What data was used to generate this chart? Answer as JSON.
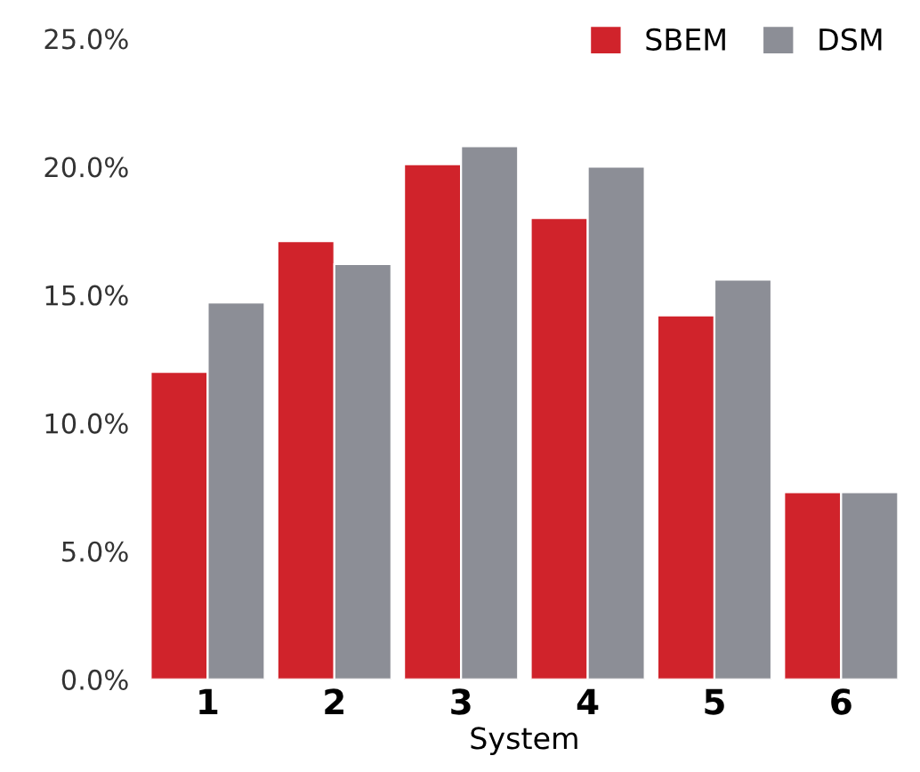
{
  "chart_data": {
    "type": "bar",
    "xlabel": "System",
    "categories": [
      "1",
      "2",
      "3",
      "4",
      "5",
      "6"
    ],
    "series": [
      {
        "name": "SBEM",
        "color": "#d0232b",
        "values": [
          12.0,
          17.1,
          20.1,
          18.0,
          14.2,
          7.3
        ]
      },
      {
        "name": "DSM",
        "color": "#8c8e96",
        "values": [
          14.7,
          16.2,
          20.8,
          20.0,
          15.6,
          7.3
        ]
      }
    ],
    "ylim": [
      0,
      25
    ],
    "yticks": [
      {
        "value": 0,
        "label": "0.0%"
      },
      {
        "value": 5,
        "label": "5.0%"
      },
      {
        "value": 10,
        "label": "10.0%"
      },
      {
        "value": 15,
        "label": "15.0%"
      },
      {
        "value": 20,
        "label": "20.0%"
      },
      {
        "value": 25,
        "label": "25.0%"
      }
    ],
    "grid": false,
    "legend": "top right"
  }
}
